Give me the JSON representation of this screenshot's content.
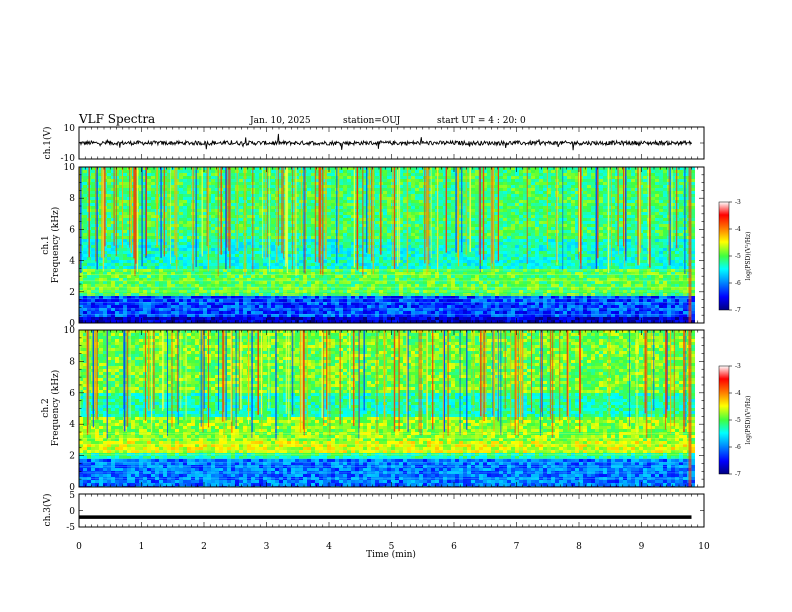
{
  "header": {
    "title": "VLF Spectra",
    "date": "Jan. 10, 2025",
    "station": "station=OUJ",
    "start_ut": "start UT =  4 : 20: 0"
  },
  "chart_data": [
    {
      "type": "line",
      "name": "ch1-waveform",
      "ylabel": "ch.1(V)",
      "ylim": [
        -10,
        10
      ],
      "y_ticks": [
        "10",
        "-10"
      ],
      "x_range": [
        0,
        9.8
      ],
      "baseline": 0,
      "description_values": {
        "typical_amplitude": 1,
        "max_spikes": 4
      }
    },
    {
      "type": "heatmap",
      "name": "ch1-spectrogram",
      "ylabel": "ch.1\nFrequency (kHz)",
      "ylabel_lines": [
        "ch.1",
        "Frequency (kHz)"
      ],
      "ylim": [
        0,
        10
      ],
      "y_ticks": [
        "0",
        "2",
        "4",
        "6",
        "8",
        "10"
      ],
      "x_range": [
        0,
        9.8
      ],
      "bands": [
        {
          "from": 0,
          "to": 0.5,
          "level": -6.7
        },
        {
          "from": 0.5,
          "to": 1.8,
          "level": -6.3
        },
        {
          "from": 1.8,
          "to": 3.6,
          "level": -5.0
        },
        {
          "from": 3.6,
          "to": 5.5,
          "level": -5.4
        },
        {
          "from": 5.5,
          "to": 10,
          "level": -5.1
        }
      ]
    },
    {
      "type": "heatmap",
      "name": "ch2-spectrogram",
      "ylabel": "ch.2\nFrequency (kHz)",
      "ylabel_lines": [
        "ch.2",
        "Frequency (kHz)"
      ],
      "ylim": [
        0,
        10
      ],
      "y_ticks": [
        "0",
        "2",
        "4",
        "6",
        "8",
        "10"
      ],
      "x_range": [
        0,
        9.8
      ],
      "bands": [
        {
          "from": 0,
          "to": 1.8,
          "level": -6.1
        },
        {
          "from": 1.8,
          "to": 2.3,
          "level": -5.3
        },
        {
          "from": 2.3,
          "to": 3.0,
          "level": -4.6
        },
        {
          "from": 3.0,
          "to": 4.5,
          "level": -4.8
        },
        {
          "from": 4.5,
          "to": 6.0,
          "level": -5.3
        },
        {
          "from": 6.0,
          "to": 10,
          "level": -4.9
        }
      ]
    },
    {
      "type": "line",
      "name": "ch3-waveform",
      "ylabel": "ch.3(V)",
      "ylim": [
        -5,
        5
      ],
      "y_ticks": [
        "5",
        "0",
        "-5"
      ],
      "x_range": [
        0,
        9.8
      ],
      "baseline": -2
    }
  ],
  "x_axis": {
    "label": "Time (min)",
    "ticks": [
      "0",
      "1",
      "2",
      "3",
      "4",
      "5",
      "6",
      "7",
      "8",
      "9",
      "10"
    ],
    "range": [
      0,
      10
    ]
  },
  "colorbar": {
    "label": "log(PSD)(V²/Hz)",
    "ticks": [
      "-3",
      "-4",
      "-5",
      "-6",
      "-7"
    ],
    "range": [
      -7,
      -3
    ],
    "colormap": [
      "#000080",
      "#0000ff",
      "#00a0ff",
      "#00ffff",
      "#40ff40",
      "#ffff00",
      "#ff8000",
      "#ff0000",
      "#ffffff"
    ]
  }
}
